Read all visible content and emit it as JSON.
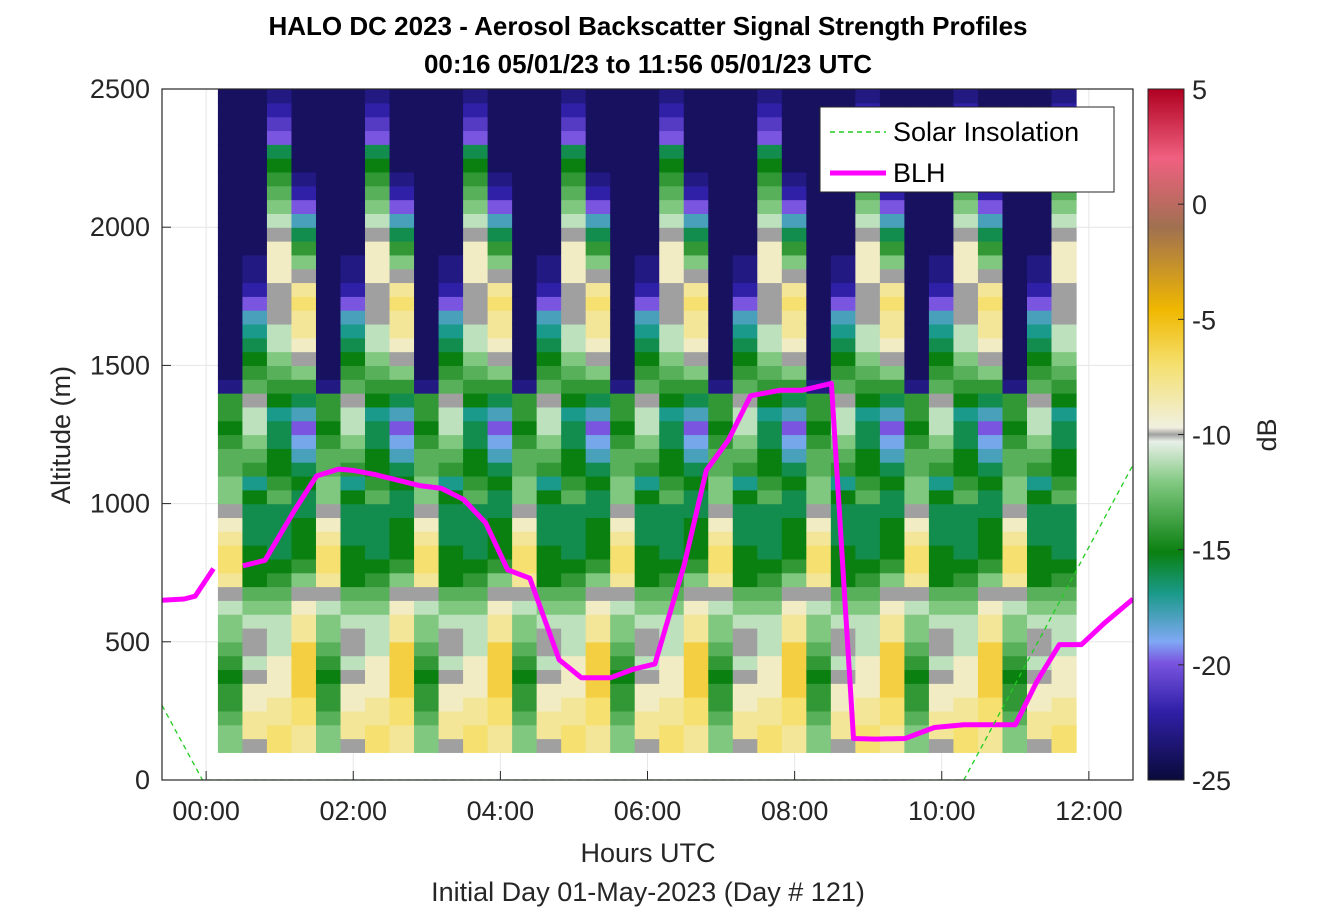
{
  "chart_data": {
    "type": "heatmap",
    "title": "HALO DC 2023 - Aerosol Backscatter Signal Strength Profiles",
    "subtitle": "00:16 05/01/23 to 11:56 05/01/23  UTC",
    "xlabel": "Hours UTC",
    "ylabel": "Altitude (m)",
    "footer": "Initial Day 01-May-2023 (Day # 121)",
    "xlim": [
      -0.6,
      12.6
    ],
    "ylim": [
      0,
      2500
    ],
    "x_ticks": [
      {
        "value": 0,
        "label": "00:00"
      },
      {
        "value": 2,
        "label": "02:00"
      },
      {
        "value": 4,
        "label": "04:00"
      },
      {
        "value": 6,
        "label": "06:00"
      },
      {
        "value": 8,
        "label": "08:00"
      },
      {
        "value": 10,
        "label": "10:00"
      },
      {
        "value": 12,
        "label": "12:00"
      }
    ],
    "y_ticks": [
      {
        "value": 0,
        "label": "0"
      },
      {
        "value": 500,
        "label": "500"
      },
      {
        "value": 1000,
        "label": "1000"
      },
      {
        "value": 1500,
        "label": "1500"
      },
      {
        "value": 2000,
        "label": "2000"
      },
      {
        "value": 2500,
        "label": "2500"
      }
    ],
    "grid": true,
    "colorbar": {
      "label": "dB",
      "range": [
        -25,
        5
      ],
      "ticks": [
        {
          "value": 5,
          "label": "5"
        },
        {
          "value": 0,
          "label": "0"
        },
        {
          "value": -5,
          "label": "-5"
        },
        {
          "value": -10,
          "label": "-10"
        },
        {
          "value": -15,
          "label": "-15"
        },
        {
          "value": -20,
          "label": "-20"
        },
        {
          "value": -25,
          "label": "-25"
        }
      ]
    },
    "legend": {
      "placement": "top-right",
      "entries": [
        {
          "name": "Solar Insolation",
          "color": "#22cc22",
          "style": "dashed"
        },
        {
          "name": "BLH",
          "color": "#ff00ff",
          "style": "solid"
        }
      ]
    },
    "series": [
      {
        "name": "BLH",
        "segments": [
          [
            [
              -0.6,
              650
            ],
            [
              -0.3,
              655
            ],
            [
              -0.15,
              665
            ],
            [
              0.1,
              765
            ]
          ],
          [
            [
              0.5,
              775
            ],
            [
              0.8,
              795
            ],
            [
              1.2,
              975
            ],
            [
              1.5,
              1100
            ],
            [
              1.8,
              1125
            ],
            [
              2.0,
              1120
            ],
            [
              2.3,
              1105
            ],
            [
              2.6,
              1085
            ],
            [
              2.9,
              1065
            ],
            [
              3.2,
              1055
            ],
            [
              3.5,
              1015
            ],
            [
              3.8,
              930
            ],
            [
              4.1,
              760
            ],
            [
              4.4,
              730
            ],
            [
              4.8,
              435
            ],
            [
              5.1,
              370
            ],
            [
              5.5,
              370
            ],
            [
              5.8,
              400
            ],
            [
              6.1,
              420
            ],
            [
              6.5,
              780
            ],
            [
              6.8,
              1120
            ],
            [
              7.1,
              1230
            ],
            [
              7.4,
              1390
            ],
            [
              7.8,
              1410
            ],
            [
              8.1,
              1410
            ],
            [
              8.5,
              1435
            ],
            [
              8.8,
              150
            ],
            [
              9.1,
              148
            ],
            [
              9.5,
              150
            ],
            [
              9.9,
              190
            ],
            [
              10.3,
              200
            ],
            [
              10.7,
              200
            ],
            [
              11.0,
              200
            ],
            [
              11.3,
              360
            ],
            [
              11.6,
              490
            ],
            [
              11.9,
              490
            ],
            [
              12.2,
              565
            ],
            [
              12.6,
              655
            ]
          ]
        ]
      },
      {
        "name": "Solar Insolation",
        "points": [
          [
            -0.6,
            270
          ],
          [
            -0.05,
            0
          ],
          [
            10.3,
            0
          ],
          [
            12.6,
            1140
          ]
        ]
      }
    ],
    "heatmap": {
      "x_start": 0.16,
      "x_step": 0.3333,
      "y_start": 100,
      "y_step": 50,
      "value_units": "dB",
      "columns": [
        [
          -12,
          -12,
          -13,
          -14,
          -14,
          -15,
          -14,
          -13,
          -12,
          -12,
          -11,
          -10,
          -8,
          -7,
          -7,
          -8,
          -9,
          -10,
          -12,
          -12,
          -13,
          -13,
          -14,
          -15,
          -14,
          -14,
          -23,
          -24,
          -24,
          -24,
          -24,
          -24,
          -24,
          -24,
          -24,
          -24,
          -24,
          -24,
          -24,
          -24,
          -24,
          -24,
          -24,
          -24,
          -24,
          -24,
          -24,
          -24
        ],
        [
          -10,
          -8,
          -8,
          -9,
          -9,
          -10,
          -11,
          -10,
          -10,
          -11,
          -12,
          -13,
          -15,
          -15,
          -15,
          -16,
          -16,
          -16,
          -15,
          -17,
          -14,
          -13,
          -12,
          -11,
          -11,
          -10,
          -13,
          -14,
          -15,
          -16,
          -17,
          -18,
          -20,
          -22,
          -23,
          -23,
          -24,
          -24,
          -24,
          -24,
          -24,
          -24,
          -24,
          -24,
          -24,
          -24,
          -24,
          -24
        ],
        [
          -7,
          -7,
          -8,
          -8,
          -9,
          -9,
          -9,
          -11,
          -11,
          -11,
          -12,
          -13,
          -14,
          -15,
          -16,
          -16,
          -16,
          -16,
          -13,
          -14,
          -15,
          -15,
          -16,
          -16,
          -17,
          -15,
          -14,
          -13,
          -12,
          -11,
          -11,
          -10,
          -10,
          -10,
          -9,
          -9,
          -9,
          -10,
          -11,
          -12,
          -13,
          -14,
          -15,
          -16,
          -20,
          -21,
          -22,
          -23
        ],
        [
          -8,
          -8,
          -7,
          -7,
          -6,
          -6,
          -6,
          -6,
          -8,
          -8,
          -9,
          -10,
          -12,
          -14,
          -15,
          -15,
          -15,
          -16,
          -16,
          -15,
          -16,
          -18,
          -19,
          -20,
          -18,
          -16,
          -14,
          -12,
          -10,
          -9,
          -8,
          -8,
          -7,
          -8,
          -10,
          -12,
          -14,
          -16,
          -18,
          -20,
          -22,
          -23,
          -24,
          -24,
          -24,
          -24,
          -24,
          -24
        ]
      ]
    }
  }
}
